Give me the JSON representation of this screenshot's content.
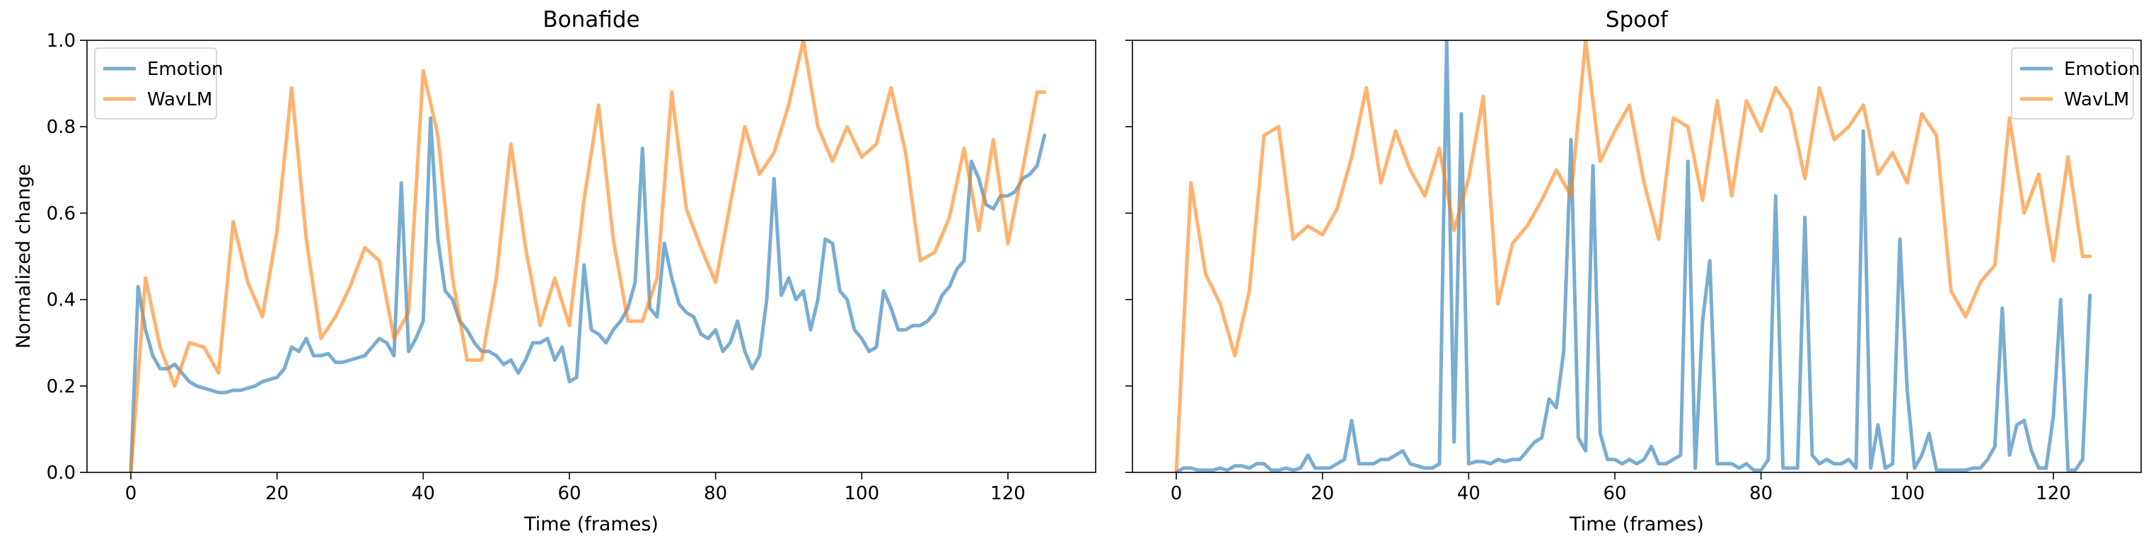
{
  "chart_data": [
    {
      "type": "line",
      "title": "Bonafide",
      "xlabel": "Time (frames)",
      "ylabel": "Normalized change",
      "xlim": [
        -6,
        132
      ],
      "ylim": [
        0,
        1
      ],
      "xticks": [
        0,
        20,
        40,
        60,
        80,
        100,
        120
      ],
      "yticks": [
        0.0,
        0.2,
        0.4,
        0.6,
        0.8,
        1.0
      ],
      "xtick_labels": [
        "0",
        "20",
        "40",
        "60",
        "80",
        "100",
        "120"
      ],
      "ytick_labels": [
        "0.0",
        "0.2",
        "0.4",
        "0.6",
        "0.8",
        "1.0"
      ],
      "legend": "top-left",
      "grid": false,
      "series": [
        {
          "name": "Emotion",
          "color": "#1f77b4",
          "x": [
            0,
            1,
            2,
            3,
            4,
            5,
            6,
            7,
            8,
            9,
            10,
            11,
            12,
            13,
            14,
            15,
            16,
            17,
            18,
            19,
            20,
            21,
            22,
            23,
            24,
            25,
            26,
            27,
            28,
            29,
            30,
            31,
            32,
            33,
            34,
            35,
            36,
            37,
            38,
            39,
            40,
            41,
            42,
            43,
            44,
            45,
            46,
            47,
            48,
            49,
            50,
            51,
            52,
            53,
            54,
            55,
            56,
            57,
            58,
            59,
            60,
            61,
            62,
            63,
            64,
            65,
            66,
            67,
            68,
            69,
            70,
            71,
            72,
            73,
            74,
            75,
            76,
            77,
            78,
            79,
            80,
            81,
            82,
            83,
            84,
            85,
            86,
            87,
            88,
            89,
            90,
            91,
            92,
            93,
            94,
            95,
            96,
            97,
            98,
            99,
            100,
            101,
            102,
            103,
            104,
            105,
            106,
            107,
            108,
            109,
            110,
            111,
            112,
            113,
            114,
            115,
            116,
            117,
            118,
            119,
            120,
            121,
            122,
            123,
            124,
            125
          ],
          "y": [
            0.0,
            0.43,
            0.33,
            0.27,
            0.24,
            0.24,
            0.25,
            0.23,
            0.21,
            0.2,
            0.195,
            0.19,
            0.185,
            0.185,
            0.19,
            0.19,
            0.195,
            0.2,
            0.21,
            0.215,
            0.22,
            0.24,
            0.29,
            0.28,
            0.31,
            0.27,
            0.27,
            0.275,
            0.255,
            0.255,
            0.26,
            0.265,
            0.27,
            0.29,
            0.31,
            0.3,
            0.27,
            0.67,
            0.28,
            0.31,
            0.35,
            0.82,
            0.54,
            0.42,
            0.4,
            0.35,
            0.33,
            0.3,
            0.28,
            0.28,
            0.27,
            0.25,
            0.26,
            0.23,
            0.26,
            0.3,
            0.3,
            0.31,
            0.26,
            0.29,
            0.21,
            0.22,
            0.48,
            0.33,
            0.32,
            0.3,
            0.33,
            0.35,
            0.38,
            0.44,
            0.75,
            0.38,
            0.36,
            0.53,
            0.45,
            0.39,
            0.37,
            0.36,
            0.32,
            0.31,
            0.33,
            0.28,
            0.3,
            0.35,
            0.28,
            0.24,
            0.27,
            0.4,
            0.68,
            0.41,
            0.45,
            0.4,
            0.42,
            0.33,
            0.4,
            0.54,
            0.53,
            0.42,
            0.4,
            0.33,
            0.31,
            0.28,
            0.29,
            0.42,
            0.38,
            0.33,
            0.33,
            0.34,
            0.34,
            0.35,
            0.37,
            0.41,
            0.43,
            0.47,
            0.49,
            0.72,
            0.68,
            0.62,
            0.61,
            0.64,
            0.64,
            0.65,
            0.68,
            0.69,
            0.71,
            0.78
          ]
        },
        {
          "name": "WavLM",
          "color": "#ff7f0e",
          "x": [
            0,
            2,
            4,
            6,
            8,
            10,
            12,
            14,
            16,
            18,
            20,
            22,
            24,
            26,
            28,
            30,
            32,
            34,
            36,
            38,
            40,
            42,
            44,
            46,
            48,
            50,
            52,
            54,
            56,
            58,
            60,
            62,
            64,
            66,
            68,
            70,
            72,
            74,
            76,
            78,
            80,
            82,
            84,
            86,
            88,
            90,
            92,
            94,
            96,
            98,
            100,
            102,
            104,
            106,
            108,
            110,
            112,
            114,
            116,
            118,
            120,
            122,
            124,
            125
          ],
          "y": [
            0.0,
            0.45,
            0.29,
            0.2,
            0.3,
            0.29,
            0.23,
            0.58,
            0.44,
            0.36,
            0.56,
            0.89,
            0.54,
            0.31,
            0.36,
            0.43,
            0.52,
            0.49,
            0.31,
            0.37,
            0.93,
            0.78,
            0.45,
            0.26,
            0.26,
            0.45,
            0.76,
            0.52,
            0.34,
            0.45,
            0.34,
            0.63,
            0.85,
            0.54,
            0.35,
            0.35,
            0.45,
            0.88,
            0.61,
            0.52,
            0.44,
            0.62,
            0.8,
            0.69,
            0.74,
            0.85,
            1.0,
            0.8,
            0.72,
            0.8,
            0.73,
            0.76,
            0.89,
            0.74,
            0.49,
            0.51,
            0.59,
            0.75,
            0.56,
            0.77,
            0.53,
            0.7,
            0.88,
            0.88
          ]
        }
      ]
    },
    {
      "type": "line",
      "title": "Spoof",
      "xlabel": "Time (frames)",
      "ylabel": "",
      "xlim": [
        -6,
        132
      ],
      "ylim": [
        0,
        1
      ],
      "xticks": [
        0,
        20,
        40,
        60,
        80,
        100,
        120
      ],
      "xtick_labels": [
        "0",
        "20",
        "40",
        "60",
        "80",
        "100",
        "120"
      ],
      "yticks": [
        0.0,
        0.2,
        0.4,
        0.6,
        0.8,
        1.0
      ],
      "ytick_labels": [],
      "legend": "top-right",
      "grid": false,
      "series": [
        {
          "name": "Emotion",
          "color": "#1f77b4",
          "x": [
            0,
            1,
            2,
            3,
            4,
            5,
            6,
            7,
            8,
            9,
            10,
            11,
            12,
            13,
            14,
            15,
            16,
            17,
            18,
            19,
            20,
            21,
            22,
            23,
            24,
            25,
            26,
            27,
            28,
            29,
            30,
            31,
            32,
            33,
            34,
            35,
            36,
            37,
            38,
            39,
            40,
            41,
            42,
            43,
            44,
            45,
            46,
            47,
            48,
            49,
            50,
            51,
            52,
            53,
            54,
            55,
            56,
            57,
            58,
            59,
            60,
            61,
            62,
            63,
            64,
            65,
            66,
            67,
            68,
            69,
            70,
            71,
            72,
            73,
            74,
            75,
            76,
            77,
            78,
            79,
            80,
            81,
            82,
            83,
            84,
            85,
            86,
            87,
            88,
            89,
            90,
            91,
            92,
            93,
            94,
            95,
            96,
            97,
            98,
            99,
            100,
            101,
            102,
            103,
            104,
            105,
            106,
            107,
            108,
            109,
            110,
            111,
            112,
            113,
            114,
            115,
            116,
            117,
            118,
            119,
            120,
            121,
            122,
            123,
            124,
            125
          ],
          "y": [
            0.0,
            0.01,
            0.01,
            0.005,
            0.005,
            0.005,
            0.01,
            0.005,
            0.015,
            0.015,
            0.01,
            0.02,
            0.02,
            0.005,
            0.005,
            0.01,
            0.005,
            0.01,
            0.04,
            0.01,
            0.01,
            0.01,
            0.02,
            0.03,
            0.12,
            0.02,
            0.02,
            0.02,
            0.03,
            0.03,
            0.04,
            0.05,
            0.02,
            0.015,
            0.01,
            0.01,
            0.02,
            1.0,
            0.07,
            0.83,
            0.02,
            0.025,
            0.025,
            0.02,
            0.03,
            0.025,
            0.03,
            0.03,
            0.05,
            0.07,
            0.08,
            0.17,
            0.15,
            0.28,
            0.77,
            0.08,
            0.05,
            0.71,
            0.09,
            0.03,
            0.03,
            0.02,
            0.03,
            0.02,
            0.03,
            0.06,
            0.02,
            0.02,
            0.03,
            0.04,
            0.72,
            0.01,
            0.35,
            0.49,
            0.02,
            0.02,
            0.02,
            0.01,
            0.02,
            0.005,
            0.005,
            0.03,
            0.64,
            0.01,
            0.01,
            0.01,
            0.59,
            0.04,
            0.02,
            0.03,
            0.02,
            0.02,
            0.03,
            0.01,
            0.79,
            0.01,
            0.11,
            0.01,
            0.02,
            0.54,
            0.19,
            0.01,
            0.04,
            0.09,
            0.005,
            0.005,
            0.005,
            0.005,
            0.005,
            0.01,
            0.01,
            0.03,
            0.06,
            0.38,
            0.04,
            0.11,
            0.12,
            0.05,
            0.01,
            0.01,
            0.13,
            0.4,
            0.005,
            0.005,
            0.03,
            0.41
          ]
        },
        {
          "name": "WavLM",
          "color": "#ff7f0e",
          "x": [
            0,
            2,
            4,
            6,
            8,
            10,
            12,
            14,
            16,
            18,
            20,
            22,
            24,
            26,
            28,
            30,
            32,
            34,
            36,
            38,
            40,
            42,
            44,
            46,
            48,
            50,
            52,
            54,
            56,
            58,
            60,
            62,
            64,
            66,
            68,
            70,
            72,
            74,
            76,
            78,
            80,
            82,
            84,
            86,
            88,
            90,
            92,
            94,
            96,
            98,
            100,
            102,
            104,
            106,
            108,
            110,
            112,
            114,
            116,
            118,
            120,
            122,
            124,
            125
          ],
          "y": [
            0.0,
            0.67,
            0.46,
            0.39,
            0.27,
            0.42,
            0.78,
            0.8,
            0.54,
            0.57,
            0.55,
            0.61,
            0.73,
            0.89,
            0.67,
            0.79,
            0.7,
            0.64,
            0.75,
            0.56,
            0.68,
            0.87,
            0.39,
            0.53,
            0.57,
            0.63,
            0.7,
            0.64,
            1.0,
            0.72,
            0.79,
            0.85,
            0.67,
            0.54,
            0.82,
            0.8,
            0.63,
            0.86,
            0.64,
            0.86,
            0.79,
            0.89,
            0.84,
            0.68,
            0.89,
            0.77,
            0.8,
            0.85,
            0.69,
            0.74,
            0.67,
            0.83,
            0.78,
            0.42,
            0.36,
            0.44,
            0.48,
            0.82,
            0.6,
            0.69,
            0.49,
            0.73,
            0.5,
            0.5
          ]
        }
      ]
    }
  ]
}
